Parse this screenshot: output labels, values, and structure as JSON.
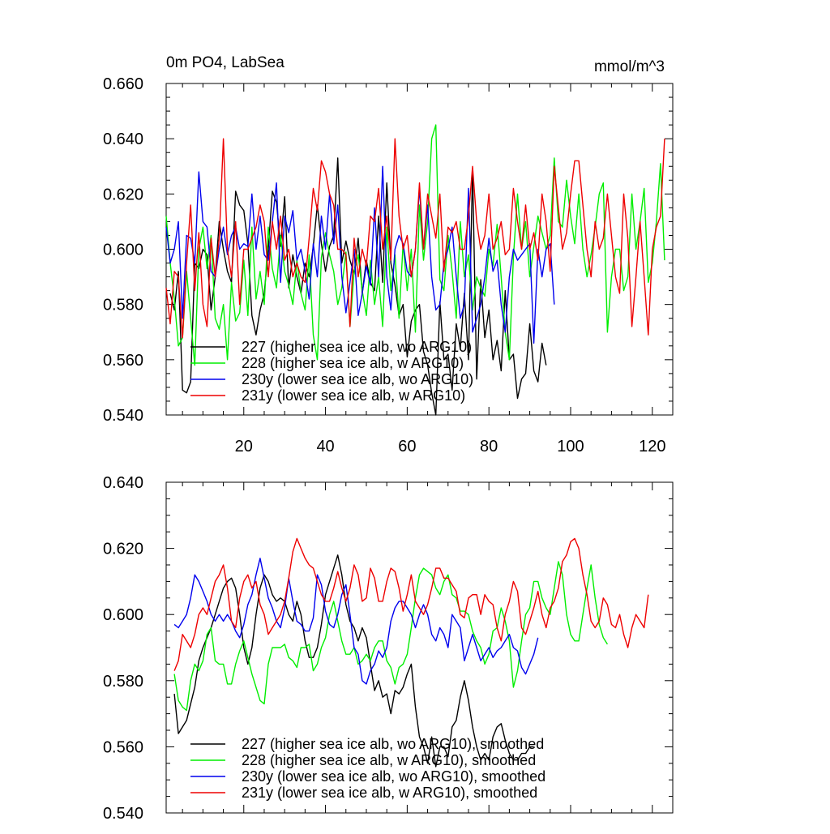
{
  "chart_data": [
    {
      "type": "line",
      "title": "0m PO4, LabSea",
      "units": "mmol/m^3",
      "xlim": [
        1,
        125
      ],
      "ylim": [
        0.54,
        0.66
      ],
      "xticks": [
        20,
        40,
        60,
        80,
        100,
        120
      ],
      "xtick_labels": [
        "20",
        "40",
        "60",
        "80",
        "100",
        "120"
      ],
      "yticks": [
        0.54,
        0.56,
        0.58,
        0.6,
        0.62,
        0.64,
        0.66
      ],
      "ytick_labels": [
        "0.540",
        "0.560",
        "0.580",
        "0.600",
        "0.620",
        "0.640",
        "0.660"
      ],
      "legend_position": "lower-left",
      "series": [
        {
          "name": "227 (higher sea ice alb, wo ARG10)",
          "color": "#000000",
          "start_x": 2,
          "values": [
            0.584,
            0.578,
            0.592,
            0.549,
            0.548,
            0.552,
            0.595,
            0.593,
            0.6,
            0.598,
            0.578,
            0.59,
            0.61,
            0.6,
            0.592,
            0.588,
            0.621,
            0.616,
            0.614,
            0.602,
            0.576,
            0.569,
            0.578,
            0.584,
            0.6,
            0.621,
            0.617,
            0.601,
            0.619,
            0.586,
            0.598,
            0.59,
            0.584,
            0.595,
            0.59,
            0.601,
            0.616,
            0.602,
            0.592,
            0.601,
            0.605,
            0.633,
            0.595,
            0.603,
            0.596,
            0.591,
            0.604,
            0.584,
            0.596,
            0.588,
            0.585,
            0.612,
            0.588,
            0.624,
            0.595,
            0.587,
            0.576,
            0.58,
            0.561,
            0.574,
            0.578,
            0.58,
            0.563,
            0.558,
            0.548,
            0.54,
            0.581,
            0.56,
            0.562,
            0.549,
            0.573,
            0.564,
            0.584,
            0.56,
            0.629,
            0.553,
            0.589,
            0.568,
            0.578,
            0.56,
            0.567,
            0.556,
            0.585,
            0.56,
            0.562,
            0.546,
            0.553,
            0.555,
            0.573,
            0.556,
            0.552,
            0.566,
            0.558
          ]
        },
        {
          "name": "228 (higher sea ice alb, w ARG10)",
          "color": "#00ee00",
          "start_x": 1,
          "values": [
            0.612,
            0.595,
            0.582,
            0.565,
            0.568,
            0.592,
            0.575,
            0.558,
            0.6,
            0.608,
            0.593,
            0.605,
            0.575,
            0.571,
            0.58,
            0.56,
            0.588,
            0.574,
            0.577,
            0.596,
            0.576,
            0.608,
            0.582,
            0.592,
            0.58,
            0.608,
            0.593,
            0.586,
            0.605,
            0.592,
            0.587,
            0.58,
            0.596,
            0.584,
            0.578,
            0.598,
            0.569,
            0.56,
            0.597,
            0.606,
            0.598,
            0.592,
            0.58,
            0.586,
            0.599,
            0.572,
            0.592,
            0.598,
            0.585,
            0.576,
            0.596,
            0.58,
            0.59,
            0.572,
            0.608,
            0.585,
            0.598,
            0.575,
            0.602,
            0.585,
            0.6,
            0.57,
            0.616,
            0.596,
            0.61,
            0.64,
            0.645,
            0.589,
            0.585,
            0.605,
            0.592,
            0.575,
            0.61,
            0.59,
            0.598,
            0.578,
            0.59,
            0.586,
            0.583,
            0.6,
            0.594,
            0.609,
            0.59,
            0.57,
            0.56,
            0.597,
            0.62,
            0.6,
            0.61,
            0.59,
            0.601,
            0.612,
            0.606,
            0.6,
            0.605,
            0.633,
            0.61,
            0.608,
            0.625,
            0.612,
            0.602,
            0.62,
            0.6,
            0.59,
            0.598,
            0.608,
            0.62,
            0.624,
            0.57,
            0.59,
            0.6,
            0.6,
            0.585,
            0.59,
            0.62,
            0.6,
            0.61,
            0.622,
            0.588,
            0.595,
            0.61,
            0.631,
            0.596
          ]
        },
        {
          "name": "230y (lower sea ice alb, wo ARG10)",
          "color": "#0000ee",
          "start_x": 1,
          "values": [
            0.608,
            0.595,
            0.6,
            0.61,
            0.575,
            0.605,
            0.604,
            0.595,
            0.628,
            0.61,
            0.608,
            0.592,
            0.59,
            0.6,
            0.608,
            0.598,
            0.605,
            0.608,
            0.6,
            0.602,
            0.601,
            0.62,
            0.6,
            0.612,
            0.598,
            0.596,
            0.61,
            0.624,
            0.588,
            0.612,
            0.606,
            0.614,
            0.596,
            0.6,
            0.592,
            0.582,
            0.602,
            0.59,
            0.612,
            0.6,
            0.62,
            0.602,
            0.616,
            0.59,
            0.577,
            0.588,
            0.6,
            0.576,
            0.584,
            0.594,
            0.587,
            0.615,
            0.59,
            0.63,
            0.59,
            0.578,
            0.6,
            0.605,
            0.602,
            0.592,
            0.59,
            0.6,
            0.622,
            0.6,
            0.616,
            0.59,
            0.578,
            0.58,
            0.595,
            0.6,
            0.608,
            0.59,
            0.575,
            0.58,
            0.622,
            0.57,
            0.575,
            0.58,
            0.59,
            0.604,
            0.592,
            0.596,
            0.58,
            0.57,
            0.59,
            0.6,
            0.596,
            0.598,
            0.6,
            0.602,
            0.566,
            0.6,
            0.59,
            0.6,
            0.602,
            0.58
          ]
        },
        {
          "name": "231y (lower sea ice alb, w ARG10)",
          "color": "#ee0000",
          "start_x": 1,
          "values": [
            0.586,
            0.573,
            0.592,
            0.59,
            0.568,
            0.595,
            0.616,
            0.585,
            0.606,
            0.58,
            0.572,
            0.604,
            0.59,
            0.604,
            0.64,
            0.6,
            0.59,
            0.61,
            0.58,
            0.6,
            0.6,
            0.604,
            0.608,
            0.616,
            0.61,
            0.59,
            0.61,
            0.6,
            0.612,
            0.596,
            0.6,
            0.59,
            0.595,
            0.59,
            0.588,
            0.604,
            0.622,
            0.614,
            0.632,
            0.628,
            0.62,
            0.616,
            0.6,
            0.6,
            0.598,
            0.572,
            0.604,
            0.59,
            0.6,
            0.594,
            0.612,
            0.61,
            0.622,
            0.6,
            0.612,
            0.596,
            0.64,
            0.612,
            0.6,
            0.605,
            0.59,
            0.6,
            0.624,
            0.6,
            0.62,
            0.612,
            0.604,
            0.62,
            0.592,
            0.608,
            0.606,
            0.61,
            0.6,
            0.6,
            0.612,
            0.63,
            0.61,
            0.6,
            0.605,
            0.62,
            0.6,
            0.604,
            0.61,
            0.598,
            0.6,
            0.622,
            0.61,
            0.6,
            0.616,
            0.6,
            0.606,
            0.596,
            0.62,
            0.61,
            0.592,
            0.63,
            0.615,
            0.6,
            0.606,
            0.62,
            0.632,
            0.632,
            0.616,
            0.6,
            0.59,
            0.61,
            0.6,
            0.604,
            0.62,
            0.605,
            0.59,
            0.584,
            0.62,
            0.604,
            0.572,
            0.59,
            0.61,
            0.59,
            0.569,
            0.6,
            0.608,
            0.612,
            0.64
          ]
        }
      ]
    },
    {
      "type": "line",
      "xlim": [
        1,
        125
      ],
      "ylim": [
        0.54,
        0.64
      ],
      "xticks": [
        20,
        40,
        60,
        80,
        100,
        120
      ],
      "yticks": [
        0.54,
        0.56,
        0.58,
        0.6,
        0.62,
        0.64
      ],
      "ytick_labels": [
        "0.540",
        "0.560",
        "0.580",
        "0.600",
        "0.620",
        "0.640"
      ],
      "legend_position": "lower-left",
      "series": [
        {
          "name": "227 (higher sea ice alb, wo ARG10), smoothed",
          "color": "#000000",
          "start_x": 3,
          "values": [
            0.576,
            0.564,
            0.566,
            0.568,
            0.573,
            0.578,
            0.586,
            0.59,
            0.593,
            0.596,
            0.6,
            0.604,
            0.608,
            0.61,
            0.611,
            0.608,
            0.6,
            0.59,
            0.585,
            0.59,
            0.6,
            0.608,
            0.612,
            0.61,
            0.606,
            0.604,
            0.605,
            0.604,
            0.6,
            0.598,
            0.604,
            0.6,
            0.592,
            0.587,
            0.587,
            0.59,
            0.597,
            0.606,
            0.61,
            0.614,
            0.618,
            0.612,
            0.603,
            0.598,
            0.596,
            0.592,
            0.596,
            0.593,
            0.585,
            0.577,
            0.58,
            0.575,
            0.576,
            0.57,
            0.577,
            0.576,
            0.578,
            0.582,
            0.585,
            0.572,
            0.563,
            0.56,
            0.555,
            0.563,
            0.554,
            0.56,
            0.56,
            0.557,
            0.566,
            0.568,
            0.575,
            0.58,
            0.574,
            0.566,
            0.56,
            0.556,
            0.558,
            0.556,
            0.563,
            0.566,
            0.567,
            0.562,
            0.558,
            0.556,
            0.556,
            0.558,
            0.558,
            0.56,
            0.56
          ]
        },
        {
          "name": "228 (higher sea ice alb, w ARG10), smoothed",
          "color": "#00ee00",
          "start_x": 3,
          "values": [
            0.582,
            0.574,
            0.572,
            0.571,
            0.58,
            0.585,
            0.583,
            0.586,
            0.594,
            0.596,
            0.586,
            0.585,
            0.585,
            0.579,
            0.579,
            0.585,
            0.589,
            0.592,
            0.587,
            0.582,
            0.578,
            0.574,
            0.573,
            0.585,
            0.59,
            0.59,
            0.59,
            0.591,
            0.587,
            0.586,
            0.584,
            0.59,
            0.59,
            0.591,
            0.583,
            0.585,
            0.59,
            0.593,
            0.6,
            0.604,
            0.598,
            0.592,
            0.588,
            0.588,
            0.59,
            0.585,
            0.586,
            0.588,
            0.586,
            0.59,
            0.592,
            0.592,
            0.586,
            0.584,
            0.579,
            0.584,
            0.585,
            0.588,
            0.596,
            0.605,
            0.612,
            0.614,
            0.613,
            0.612,
            0.608,
            0.606,
            0.61,
            0.612,
            0.606,
            0.605,
            0.601,
            0.601,
            0.6,
            0.595,
            0.592,
            0.59,
            0.585,
            0.588,
            0.595,
            0.596,
            0.602,
            0.598,
            0.592,
            0.578,
            0.583,
            0.592,
            0.6,
            0.602,
            0.61,
            0.61,
            0.605,
            0.602,
            0.6,
            0.608,
            0.616,
            0.612,
            0.6,
            0.594,
            0.592,
            0.592,
            0.6,
            0.608,
            0.615,
            0.605,
            0.597,
            0.593,
            0.591
          ]
        },
        {
          "name": "230y (lower sea ice alb, wo ARG10), smoothed",
          "color": "#0000ee",
          "start_x": 3,
          "values": [
            0.597,
            0.596,
            0.598,
            0.6,
            0.605,
            0.612,
            0.61,
            0.607,
            0.604,
            0.6,
            0.598,
            0.6,
            0.598,
            0.6,
            0.598,
            0.595,
            0.593,
            0.597,
            0.603,
            0.606,
            0.612,
            0.617,
            0.611,
            0.605,
            0.602,
            0.598,
            0.596,
            0.602,
            0.611,
            0.604,
            0.598,
            0.597,
            0.595,
            0.595,
            0.599,
            0.612,
            0.609,
            0.601,
            0.597,
            0.596,
            0.6,
            0.606,
            0.609,
            0.6,
            0.59,
            0.588,
            0.58,
            0.579,
            0.583,
            0.585,
            0.589,
            0.587,
            0.59,
            0.598,
            0.602,
            0.604,
            0.604,
            0.602,
            0.6,
            0.596,
            0.6,
            0.603,
            0.6,
            0.594,
            0.592,
            0.596,
            0.594,
            0.59,
            0.6,
            0.598,
            0.596,
            0.586,
            0.59,
            0.594,
            0.59,
            0.586,
            0.588,
            0.59,
            0.587,
            0.589,
            0.59,
            0.592,
            0.594,
            0.59,
            0.589,
            0.584,
            0.582,
            0.585,
            0.588,
            0.593
          ]
        },
        {
          "name": "231y (lower sea ice alb, w ARG10), smoothed",
          "color": "#ee0000",
          "start_x": 3,
          "values": [
            0.583,
            0.586,
            0.594,
            0.592,
            0.59,
            0.594,
            0.6,
            0.602,
            0.6,
            0.605,
            0.61,
            0.612,
            0.615,
            0.608,
            0.598,
            0.596,
            0.605,
            0.61,
            0.612,
            0.608,
            0.61,
            0.603,
            0.6,
            0.594,
            0.596,
            0.598,
            0.6,
            0.604,
            0.611,
            0.619,
            0.623,
            0.62,
            0.617,
            0.615,
            0.614,
            0.61,
            0.606,
            0.604,
            0.604,
            0.608,
            0.613,
            0.608,
            0.604,
            0.608,
            0.615,
            0.612,
            0.604,
            0.605,
            0.614,
            0.611,
            0.604,
            0.604,
            0.61,
            0.614,
            0.613,
            0.608,
            0.601,
            0.606,
            0.612,
            0.604,
            0.602,
            0.6,
            0.603,
            0.608,
            0.614,
            0.614,
            0.611,
            0.611,
            0.609,
            0.607,
            0.6,
            0.599,
            0.605,
            0.606,
            0.606,
            0.6,
            0.606,
            0.604,
            0.603,
            0.596,
            0.592,
            0.6,
            0.604,
            0.61,
            0.607,
            0.596,
            0.594,
            0.598,
            0.602,
            0.607,
            0.6,
            0.596,
            0.602,
            0.604,
            0.608,
            0.616,
            0.618,
            0.622,
            0.623,
            0.62,
            0.612,
            0.606,
            0.598,
            0.596,
            0.598,
            0.605,
            0.603,
            0.597,
            0.596,
            0.6,
            0.594,
            0.59,
            0.596,
            0.6,
            0.598,
            0.596,
            0.606
          ]
        }
      ]
    }
  ]
}
